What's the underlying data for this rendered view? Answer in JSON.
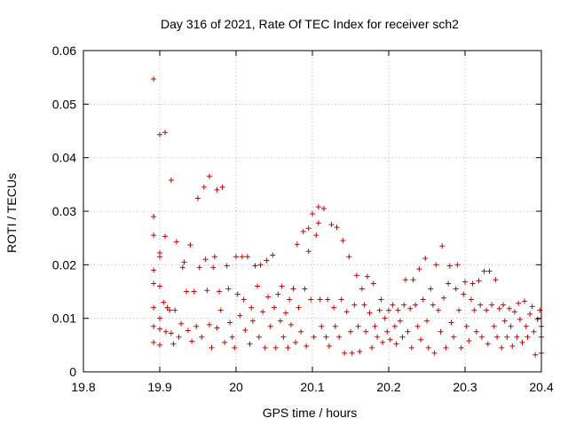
{
  "chart_data": {
    "type": "scatter",
    "title": "Day 316 of 2021, Rate Of TEC Index for receiver sch2",
    "xlabel": "GPS time / hours",
    "ylabel": "ROTI / TECUs",
    "xlim": [
      19.8,
      20.4
    ],
    "ylim": [
      0,
      0.06
    ],
    "xticks": [
      "19.8",
      "19.9",
      "20",
      "20.1",
      "20.2",
      "20.3",
      "20.4"
    ],
    "yticks": [
      "0",
      "0.01",
      "0.02",
      "0.03",
      "0.04",
      "0.05",
      "0.06"
    ],
    "grid": true,
    "marker": "+",
    "color": "#cc0000",
    "points": [
      [
        19.892,
        0.0547
      ],
      [
        19.892,
        0.029
      ],
      [
        19.892,
        0.0255
      ],
      [
        19.892,
        0.019
      ],
      [
        19.892,
        0.0165
      ],
      [
        19.892,
        0.012
      ],
      [
        19.892,
        0.0085
      ],
      [
        19.892,
        0.0055
      ],
      [
        19.9,
        0.0443
      ],
      [
        19.907,
        0.0447
      ],
      [
        19.915,
        0.0358
      ],
      [
        19.9,
        0.0222
      ],
      [
        19.9,
        0.0215
      ],
      [
        19.9,
        0.016
      ],
      [
        19.907,
        0.0253
      ],
      [
        19.9,
        0.01
      ],
      [
        19.9,
        0.008
      ],
      [
        19.9,
        0.005
      ],
      [
        19.905,
        0.013
      ],
      [
        19.908,
        0.0075
      ],
      [
        19.91,
        0.012
      ],
      [
        19.913,
        0.0115
      ],
      [
        19.915,
        0.0072
      ],
      [
        19.918,
        0.0052
      ],
      [
        19.922,
        0.0243
      ],
      [
        19.92,
        0.0115
      ],
      [
        19.925,
        0.0065
      ],
      [
        19.928,
        0.009
      ],
      [
        19.93,
        0.0195
      ],
      [
        19.932,
        0.0205
      ],
      [
        19.935,
        0.015
      ],
      [
        19.937,
        0.0077
      ],
      [
        19.94,
        0.0237
      ],
      [
        19.942,
        0.0057
      ],
      [
        19.945,
        0.015
      ],
      [
        19.948,
        0.0085
      ],
      [
        19.95,
        0.0324
      ],
      [
        19.952,
        0.0195
      ],
      [
        19.955,
        0.0065
      ],
      [
        19.958,
        0.0345
      ],
      [
        19.96,
        0.021
      ],
      [
        19.962,
        0.0152
      ],
      [
        19.965,
        0.0365
      ],
      [
        19.965,
        0.0088
      ],
      [
        19.968,
        0.0045
      ],
      [
        19.97,
        0.0195
      ],
      [
        19.972,
        0.0215
      ],
      [
        19.975,
        0.034
      ],
      [
        19.975,
        0.0082
      ],
      [
        19.978,
        0.015
      ],
      [
        19.98,
        0.0115
      ],
      [
        19.982,
        0.0345
      ],
      [
        19.985,
        0.0055
      ],
      [
        19.988,
        0.0198
      ],
      [
        19.99,
        0.0155
      ],
      [
        19.992,
        0.0092
      ],
      [
        19.995,
        0.0065
      ],
      [
        19.998,
        0.0045
      ],
      [
        20.0,
        0.0215
      ],
      [
        20.002,
        0.0145
      ],
      [
        20.005,
        0.0105
      ],
      [
        20.008,
        0.0215
      ],
      [
        20.01,
        0.0135
      ],
      [
        20.012,
        0.0078
      ],
      [
        20.015,
        0.0215
      ],
      [
        20.018,
        0.0052
      ],
      [
        20.02,
        0.012
      ],
      [
        20.022,
        0.0095
      ],
      [
        20.025,
        0.0198
      ],
      [
        20.028,
        0.016
      ],
      [
        20.03,
        0.0065
      ],
      [
        20.032,
        0.02
      ],
      [
        20.035,
        0.0112
      ],
      [
        20.038,
        0.0045
      ],
      [
        20.04,
        0.0208
      ],
      [
        20.042,
        0.014
      ],
      [
        20.045,
        0.0085
      ],
      [
        20.048,
        0.0218
      ],
      [
        20.05,
        0.012
      ],
      [
        20.052,
        0.0045
      ],
      [
        20.055,
        0.0145
      ],
      [
        20.058,
        0.0095
      ],
      [
        20.06,
        0.016
      ],
      [
        20.062,
        0.0065
      ],
      [
        20.065,
        0.011
      ],
      [
        20.068,
        0.0045
      ],
      [
        20.07,
        0.0135
      ],
      [
        20.072,
        0.0088
      ],
      [
        20.075,
        0.0155
      ],
      [
        20.078,
        0.0055
      ],
      [
        20.08,
        0.0238
      ],
      [
        20.082,
        0.012
      ],
      [
        20.085,
        0.0075
      ],
      [
        20.088,
        0.0262
      ],
      [
        20.09,
        0.0155
      ],
      [
        20.092,
        0.0048
      ],
      [
        20.095,
        0.0225
      ],
      [
        20.095,
        0.0268
      ],
      [
        20.098,
        0.0135
      ],
      [
        20.1,
        0.0295
      ],
      [
        20.102,
        0.0065
      ],
      [
        20.105,
        0.0255
      ],
      [
        20.108,
        0.0308
      ],
      [
        20.108,
        0.0278
      ],
      [
        20.11,
        0.0135
      ],
      [
        20.112,
        0.0085
      ],
      [
        20.115,
        0.0305
      ],
      [
        20.118,
        0.0065
      ],
      [
        20.12,
        0.0135
      ],
      [
        20.122,
        0.0048
      ],
      [
        20.125,
        0.0275
      ],
      [
        20.128,
        0.012
      ],
      [
        20.13,
        0.0085
      ],
      [
        20.132,
        0.027
      ],
      [
        20.135,
        0.0065
      ],
      [
        20.138,
        0.0135
      ],
      [
        20.14,
        0.0245
      ],
      [
        20.142,
        0.0035
      ],
      [
        20.145,
        0.0112
      ],
      [
        20.148,
        0.0215
      ],
      [
        20.15,
        0.0075
      ],
      [
        20.152,
        0.0035
      ],
      [
        20.155,
        0.0125
      ],
      [
        20.158,
        0.018
      ],
      [
        20.16,
        0.0085
      ],
      [
        20.162,
        0.0038
      ],
      [
        20.165,
        0.0155
      ],
      [
        20.168,
        0.0125
      ],
      [
        20.17,
        0.0075
      ],
      [
        20.172,
        0.0178
      ],
      [
        20.175,
        0.011
      ],
      [
        20.178,
        0.0045
      ],
      [
        20.18,
        0.0165
      ],
      [
        20.182,
        0.0085
      ],
      [
        20.185,
        0.0065
      ],
      [
        20.188,
        0.0115
      ],
      [
        20.19,
        0.0135
      ],
      [
        20.192,
        0.0055
      ],
      [
        20.195,
        0.01
      ],
      [
        20.198,
        0.0075
      ],
      [
        20.2,
        0.0115
      ],
      [
        20.202,
        0.006
      ],
      [
        20.205,
        0.0125
      ],
      [
        20.208,
        0.0085
      ],
      [
        20.21,
        0.0052
      ],
      [
        20.212,
        0.0115
      ],
      [
        20.215,
        0.0095
      ],
      [
        20.218,
        0.0065
      ],
      [
        20.22,
        0.0125
      ],
      [
        20.222,
        0.0172
      ],
      [
        20.225,
        0.0075
      ],
      [
        20.228,
        0.0118
      ],
      [
        20.23,
        0.0045
      ],
      [
        20.232,
        0.0172
      ],
      [
        20.235,
        0.0125
      ],
      [
        20.238,
        0.0085
      ],
      [
        20.24,
        0.0192
      ],
      [
        20.242,
        0.006
      ],
      [
        20.245,
        0.0135
      ],
      [
        20.248,
        0.0212
      ],
      [
        20.25,
        0.0095
      ],
      [
        20.252,
        0.0045
      ],
      [
        20.255,
        0.0155
      ],
      [
        20.258,
        0.0125
      ],
      [
        20.26,
        0.0035
      ],
      [
        20.262,
        0.02
      ],
      [
        20.265,
        0.0115
      ],
      [
        20.268,
        0.0075
      ],
      [
        20.27,
        0.0235
      ],
      [
        20.272,
        0.0138
      ],
      [
        20.275,
        0.0045
      ],
      [
        20.278,
        0.0165
      ],
      [
        20.28,
        0.0198
      ],
      [
        20.282,
        0.0092
      ],
      [
        20.285,
        0.0065
      ],
      [
        20.288,
        0.0155
      ],
      [
        20.29,
        0.02
      ],
      [
        20.292,
        0.0115
      ],
      [
        20.295,
        0.0045
      ],
      [
        20.298,
        0.0145
      ],
      [
        20.3,
        0.0168
      ],
      [
        20.302,
        0.0085
      ],
      [
        20.305,
        0.0058
      ],
      [
        20.308,
        0.0135
      ],
      [
        20.31,
        0.0165
      ],
      [
        20.312,
        0.0115
      ],
      [
        20.315,
        0.0075
      ],
      [
        20.318,
        0.017
      ],
      [
        20.32,
        0.0125
      ],
      [
        20.322,
        0.0065
      ],
      [
        20.325,
        0.0188
      ],
      [
        20.328,
        0.0115
      ],
      [
        20.33,
        0.0052
      ],
      [
        20.332,
        0.0188
      ],
      [
        20.335,
        0.0125
      ],
      [
        20.338,
        0.0085
      ],
      [
        20.34,
        0.0172
      ],
      [
        20.342,
        0.0065
      ],
      [
        20.345,
        0.0118
      ],
      [
        20.348,
        0.0045
      ],
      [
        20.35,
        0.0125
      ],
      [
        20.352,
        0.0095
      ],
      [
        20.355,
        0.0065
      ],
      [
        20.358,
        0.0118
      ],
      [
        20.36,
        0.0085
      ],
      [
        20.362,
        0.0048
      ],
      [
        20.365,
        0.0112
      ],
      [
        20.368,
        0.0065
      ],
      [
        20.37,
        0.0128
      ],
      [
        20.372,
        0.0098
      ],
      [
        20.375,
        0.0055
      ],
      [
        20.378,
        0.0132
      ],
      [
        20.38,
        0.0085
      ],
      [
        20.382,
        0.0065
      ],
      [
        20.385,
        0.0108
      ],
      [
        20.388,
        0.0122
      ],
      [
        20.39,
        0.0075
      ],
      [
        20.392,
        0.0032
      ],
      [
        20.395,
        0.0098
      ],
      [
        20.398,
        0.0115
      ],
      [
        20.4,
        0.0085
      ],
      [
        20.4,
        0.0065
      ],
      [
        20.4,
        0.0035
      ]
    ]
  }
}
